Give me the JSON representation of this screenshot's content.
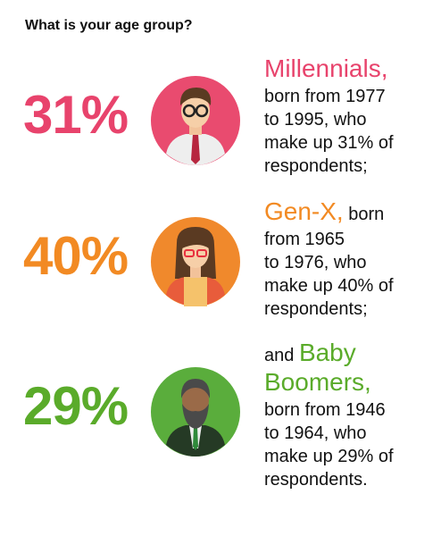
{
  "title": "What is your age group?",
  "groups": [
    {
      "percent": "31%",
      "name": "Millennials,",
      "lines": [
        "born from 1977",
        "to 1995, who",
        "make up 31% of",
        "respondents;"
      ]
    },
    {
      "percent": "40%",
      "name": "Gen-X,",
      "name_after": "born",
      "lines": [
        "from 1965",
        "to 1976, who",
        "make up 40% of",
        "respondents;"
      ]
    },
    {
      "percent": "29%",
      "name_before": "and",
      "name": "Baby Boomers,",
      "lines": [
        "born from 1946",
        "to 1964, who",
        "make up 29% of",
        "respondents."
      ]
    }
  ]
}
